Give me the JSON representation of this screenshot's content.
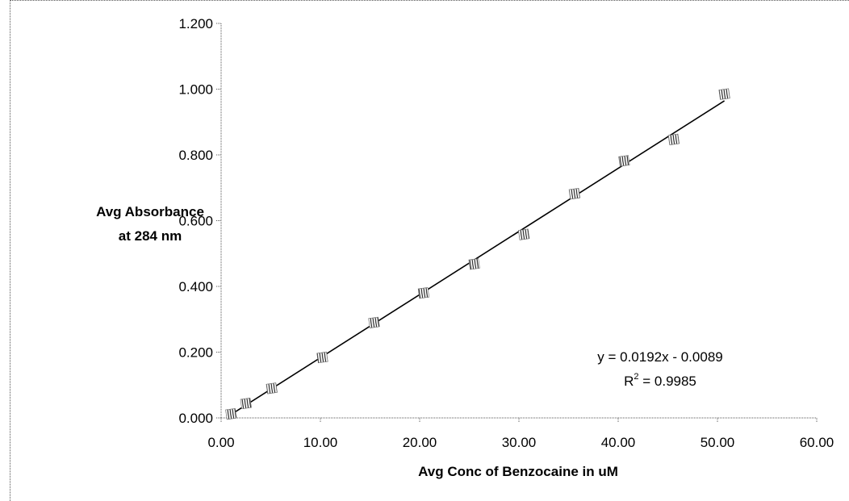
{
  "chart_data": {
    "type": "scatter",
    "xlabel": "Avg Conc of Benzocaine in uM",
    "ylabel_lines": [
      "Avg Absorbance",
      "at 284 nm"
    ],
    "xlim": [
      0,
      60
    ],
    "ylim": [
      0,
      1.2
    ],
    "x_ticks": [
      "0.00",
      "10.00",
      "20.00",
      "30.00",
      "40.00",
      "50.00",
      "60.00"
    ],
    "y_ticks": [
      "0.000",
      "0.200",
      "0.400",
      "0.600",
      "0.800",
      "1.000",
      "1.200"
    ],
    "series": [
      {
        "marker": "hatched-square",
        "points": [
          {
            "x": 1.0,
            "y": 0.012
          },
          {
            "x": 2.5,
            "y": 0.044
          },
          {
            "x": 5.1,
            "y": 0.09
          },
          {
            "x": 10.2,
            "y": 0.184
          },
          {
            "x": 15.4,
            "y": 0.29
          },
          {
            "x": 20.4,
            "y": 0.38
          },
          {
            "x": 25.5,
            "y": 0.468
          },
          {
            "x": 30.5,
            "y": 0.558
          },
          {
            "x": 35.6,
            "y": 0.682
          },
          {
            "x": 40.6,
            "y": 0.782
          },
          {
            "x": 45.6,
            "y": 0.847
          },
          {
            "x": 50.7,
            "y": 0.985
          }
        ]
      }
    ],
    "trendline": {
      "slope": 0.0192,
      "intercept": -0.0089,
      "x_range": [
        1.0,
        50.7
      ]
    },
    "equation_text": "y = 0.0192x - 0.0089",
    "r2_label": "R",
    "r2_sup": "2",
    "r2_value": " = 0.9985",
    "grid": false,
    "legend": "none"
  }
}
